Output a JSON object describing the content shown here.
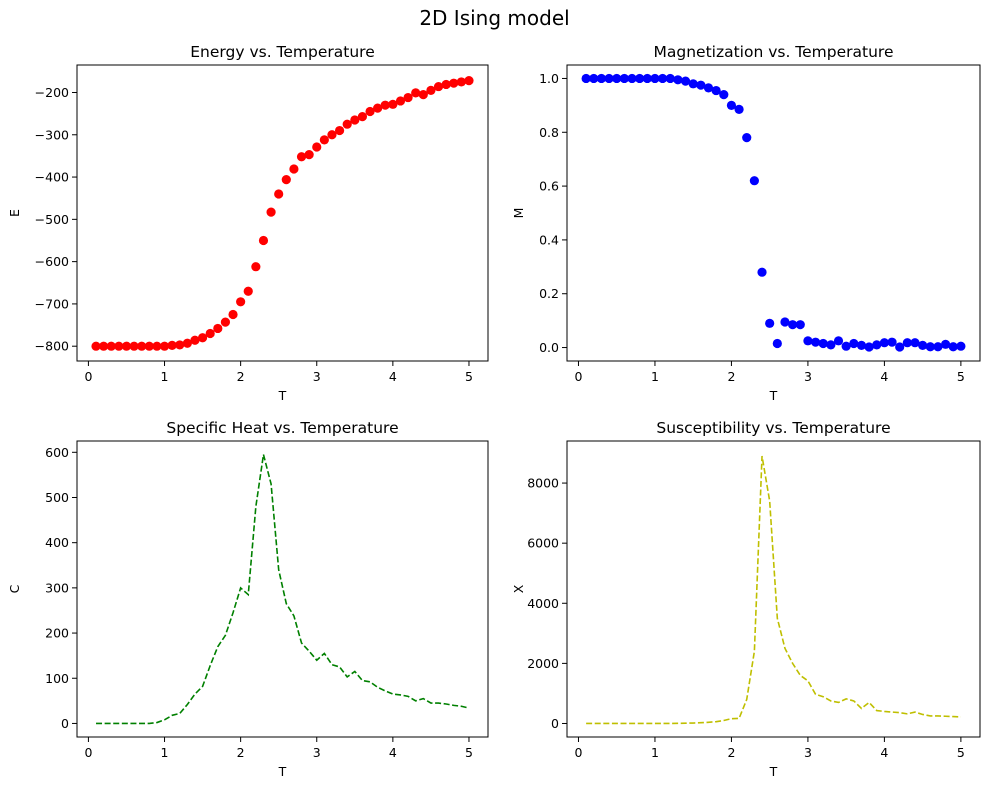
{
  "figure": {
    "suptitle": "2D Ising model"
  },
  "chart_data": [
    {
      "type": "scatter",
      "title": "Energy vs. Temperature",
      "xlabel": "T",
      "ylabel": "E",
      "color": "#ff0000",
      "marker": "circle",
      "xlim": [
        -0.15,
        5.25
      ],
      "ylim": [
        -835,
        -135
      ],
      "xticks": [
        0,
        1,
        2,
        3,
        4,
        5
      ],
      "yticks": [
        -800,
        -700,
        -600,
        -500,
        -400,
        -300,
        -200
      ],
      "ytick_labels": [
        "−800",
        "−700",
        "−600",
        "−500",
        "−400",
        "−300",
        "−200"
      ],
      "x": [
        0.1,
        0.2,
        0.3,
        0.4,
        0.5,
        0.6,
        0.7,
        0.8,
        0.9,
        1.0,
        1.1,
        1.2,
        1.3,
        1.4,
        1.5,
        1.6,
        1.7,
        1.8,
        1.9,
        2.0,
        2.1,
        2.2,
        2.3,
        2.4,
        2.5,
        2.6,
        2.7,
        2.8,
        2.9,
        3.0,
        3.1,
        3.2,
        3.3,
        3.4,
        3.5,
        3.6,
        3.7,
        3.8,
        3.9,
        4.0,
        4.1,
        4.2,
        4.3,
        4.4,
        4.5,
        4.6,
        4.7,
        4.8,
        4.9,
        5.0
      ],
      "y": [
        -800,
        -800,
        -800,
        -800,
        -800,
        -800,
        -800,
        -800,
        -800,
        -800,
        -798,
        -797,
        -793,
        -786,
        -780,
        -770,
        -758,
        -743,
        -725,
        -695,
        -670,
        -612,
        -550,
        -483,
        -440,
        -406,
        -381,
        -352,
        -347,
        -329,
        -312,
        -300,
        -290,
        -275,
        -265,
        -257,
        -245,
        -237,
        -230,
        -228,
        -220,
        -212,
        -201,
        -205,
        -195,
        -186,
        -181,
        -178,
        -175,
        -172
      ]
    },
    {
      "type": "scatter",
      "title": "Magnetization vs. Temperature",
      "xlabel": "T",
      "ylabel": "M",
      "color": "#0000ff",
      "marker": "circle",
      "xlim": [
        -0.15,
        5.25
      ],
      "ylim": [
        -0.05,
        1.05
      ],
      "xticks": [
        0,
        1,
        2,
        3,
        4,
        5
      ],
      "yticks": [
        0.0,
        0.2,
        0.4,
        0.6,
        0.8,
        1.0
      ],
      "ytick_labels": [
        "0.0",
        "0.2",
        "0.4",
        "0.6",
        "0.8",
        "1.0"
      ],
      "x": [
        0.1,
        0.2,
        0.3,
        0.4,
        0.5,
        0.6,
        0.7,
        0.8,
        0.9,
        1.0,
        1.1,
        1.2,
        1.3,
        1.4,
        1.5,
        1.6,
        1.7,
        1.8,
        1.9,
        2.0,
        2.1,
        2.2,
        2.3,
        2.4,
        2.5,
        2.6,
        2.7,
        2.8,
        2.9,
        3.0,
        3.1,
        3.2,
        3.3,
        3.4,
        3.5,
        3.6,
        3.7,
        3.8,
        3.9,
        4.0,
        4.1,
        4.2,
        4.3,
        4.4,
        4.5,
        4.6,
        4.7,
        4.8,
        4.9,
        5.0
      ],
      "y": [
        1.0,
        1.0,
        1.0,
        1.0,
        1.0,
        1.0,
        1.0,
        1.0,
        1.0,
        1.0,
        1.0,
        1.0,
        0.995,
        0.99,
        0.98,
        0.975,
        0.965,
        0.955,
        0.94,
        0.9,
        0.885,
        0.78,
        0.62,
        0.28,
        0.09,
        0.015,
        0.095,
        0.085,
        0.085,
        0.025,
        0.02,
        0.015,
        0.01,
        0.025,
        0.005,
        0.015,
        0.008,
        0.002,
        0.01,
        0.018,
        0.02,
        0.002,
        0.018,
        0.018,
        0.008,
        0.003,
        0.003,
        0.012,
        0.003,
        0.005
      ]
    },
    {
      "type": "line",
      "title": "Specific Heat vs. Temperature",
      "xlabel": "T",
      "ylabel": "C",
      "color": "#008000",
      "linestyle": "dashed",
      "xlim": [
        -0.15,
        5.25
      ],
      "ylim": [
        -30,
        625
      ],
      "xticks": [
        0,
        1,
        2,
        3,
        4,
        5
      ],
      "yticks": [
        0,
        100,
        200,
        300,
        400,
        500,
        600
      ],
      "ytick_labels": [
        "0",
        "100",
        "200",
        "300",
        "400",
        "500",
        "600"
      ],
      "x": [
        0.1,
        0.2,
        0.3,
        0.4,
        0.5,
        0.6,
        0.7,
        0.8,
        0.9,
        1.0,
        1.1,
        1.2,
        1.3,
        1.4,
        1.5,
        1.6,
        1.7,
        1.8,
        1.9,
        2.0,
        2.1,
        2.2,
        2.3,
        2.4,
        2.5,
        2.6,
        2.7,
        2.8,
        2.9,
        3.0,
        3.1,
        3.2,
        3.3,
        3.4,
        3.5,
        3.6,
        3.7,
        3.8,
        3.9,
        4.0,
        4.1,
        4.2,
        4.3,
        4.4,
        4.5,
        4.6,
        4.7,
        4.8,
        4.9,
        5.0
      ],
      "y": [
        0,
        0,
        0,
        0,
        0,
        0,
        0,
        0,
        2,
        8,
        18,
        22,
        42,
        65,
        82,
        128,
        170,
        195,
        245,
        300,
        285,
        480,
        595,
        530,
        340,
        265,
        238,
        178,
        160,
        140,
        155,
        130,
        125,
        103,
        115,
        95,
        92,
        80,
        72,
        65,
        63,
        60,
        50,
        55,
        45,
        45,
        43,
        40,
        38,
        34
      ]
    },
    {
      "type": "line",
      "title": "Susceptibility vs. Temperature",
      "xlabel": "T",
      "ylabel": "X",
      "color": "#bfbf00",
      "linestyle": "dashed",
      "xlim": [
        -0.15,
        5.25
      ],
      "ylim": [
        -450,
        9400
      ],
      "xticks": [
        0,
        1,
        2,
        3,
        4,
        5
      ],
      "yticks": [
        0,
        2000,
        4000,
        6000,
        8000
      ],
      "ytick_labels": [
        "0",
        "2000",
        "4000",
        "6000",
        "8000"
      ],
      "x": [
        0.1,
        0.2,
        0.3,
        0.4,
        0.5,
        0.6,
        0.7,
        0.8,
        0.9,
        1.0,
        1.1,
        1.2,
        1.3,
        1.4,
        1.5,
        1.6,
        1.7,
        1.8,
        1.9,
        2.0,
        2.1,
        2.2,
        2.3,
        2.4,
        2.5,
        2.6,
        2.7,
        2.8,
        2.9,
        3.0,
        3.1,
        3.2,
        3.3,
        3.4,
        3.5,
        3.6,
        3.7,
        3.8,
        3.9,
        4.0,
        4.1,
        4.2,
        4.3,
        4.4,
        4.5,
        4.6,
        4.7,
        4.8,
        4.9,
        5.0
      ],
      "y": [
        0,
        0,
        0,
        0,
        0,
        0,
        0,
        0,
        0,
        0,
        0,
        0,
        5,
        10,
        15,
        25,
        40,
        60,
        100,
        160,
        170,
        800,
        2400,
        8900,
        7400,
        3500,
        2500,
        2000,
        1600,
        1420,
        970,
        890,
        750,
        700,
        820,
        750,
        500,
        700,
        430,
        400,
        380,
        360,
        320,
        380,
        300,
        250,
        250,
        240,
        230,
        220
      ]
    }
  ]
}
